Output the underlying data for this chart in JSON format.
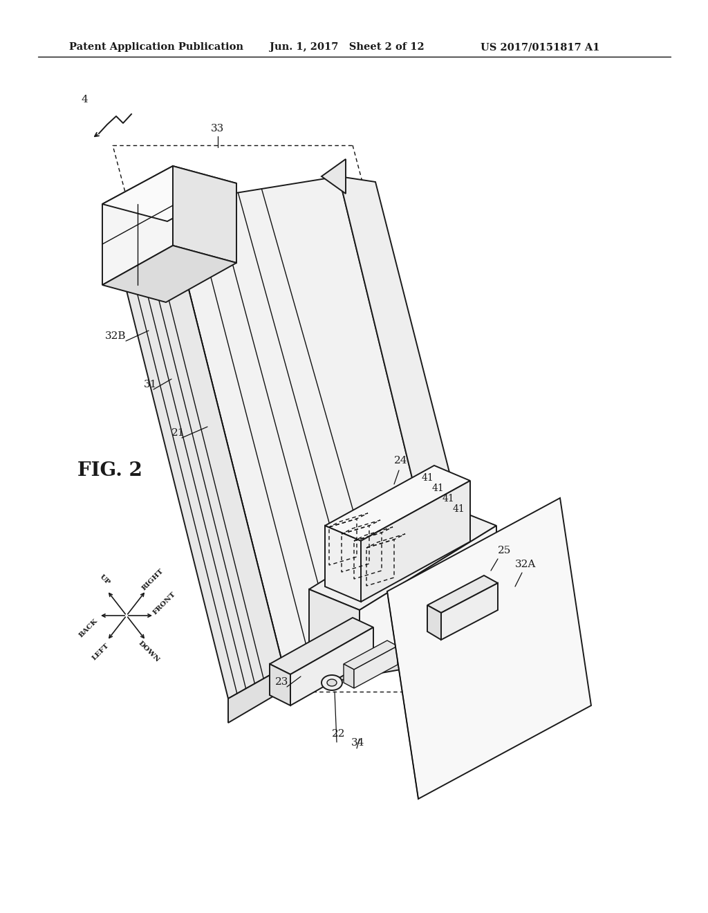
{
  "bg_color": "#ffffff",
  "line_color": "#1a1a1a",
  "header_left": "Patent Application Publication",
  "header_center": "Jun. 1, 2017   Sheet 2 of 12",
  "header_right": "US 2017/0151817 A1",
  "fig_label": "FIG. 2",
  "line_color_dark": "#111111",
  "line_color_gray": "#888888"
}
